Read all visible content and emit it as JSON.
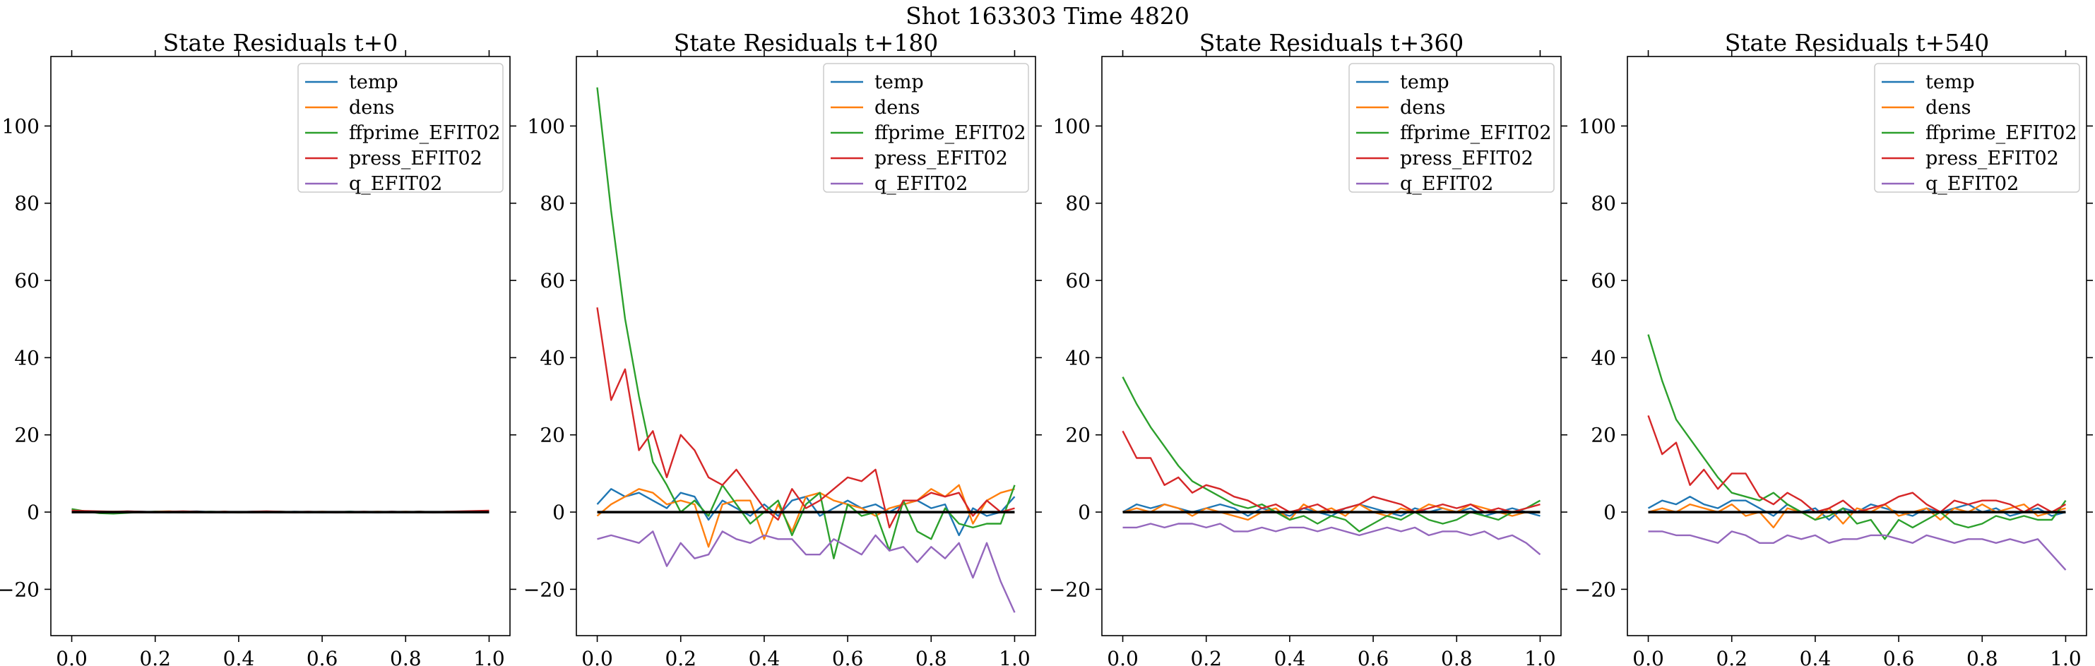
{
  "figure": {
    "title": "Shot 163303   Time 4820"
  },
  "legend_labels": [
    "temp",
    "dens",
    "ffprime_EFIT02",
    "press_EFIT02",
    "q_EFIT02"
  ],
  "colors": {
    "temp": "#1f77b4",
    "dens": "#ff7f0e",
    "ffprime_EFIT02": "#2ca02c",
    "press_EFIT02": "#d62728",
    "q_EFIT02": "#9467bd",
    "zero_line": "#000000"
  },
  "chart_data": [
    {
      "type": "line",
      "title": "State Residuals t+0",
      "xlim": [
        -0.05,
        1.05
      ],
      "ylim": [
        -32,
        118
      ],
      "xticks": [
        "0.0",
        "0.2",
        "0.4",
        "0.6",
        "0.8",
        "1.0"
      ],
      "yticks": [
        "−20",
        "0",
        "20",
        "40",
        "60",
        "80",
        "100"
      ],
      "legend_position": "upper right",
      "x": [
        0.0,
        0.0333,
        0.0667,
        0.1,
        0.1333,
        0.1667,
        0.2,
        0.2333,
        0.2667,
        0.3,
        0.3333,
        0.3667,
        0.4,
        0.4333,
        0.4667,
        0.5,
        0.5333,
        0.5667,
        0.6,
        0.6333,
        0.6667,
        0.7,
        0.7333,
        0.7667,
        0.8,
        0.8333,
        0.8667,
        0.9,
        0.9333,
        0.9667,
        1.0
      ],
      "series": [
        {
          "name": "temp",
          "values": [
            0.2,
            0.1,
            -0.1,
            0.0,
            0.2,
            0.1,
            0.0,
            -0.1,
            0.1,
            0.2,
            0.0,
            -0.1,
            0.0,
            0.1,
            0.0,
            -0.1,
            0.1,
            0.0,
            -0.1,
            0.0,
            0.1,
            0.0,
            -0.1,
            0.1,
            0.0,
            0.1,
            -0.1,
            0.0,
            0.1,
            0.0,
            0.1
          ]
        },
        {
          "name": "dens",
          "values": [
            0.3,
            0.2,
            0.0,
            0.1,
            0.0,
            -0.1,
            0.1,
            0.2,
            0.0,
            0.1,
            0.0,
            0.1,
            -0.1,
            0.0,
            0.1,
            0.0,
            -0.1,
            0.0,
            0.1,
            0.0,
            -0.1,
            0.0,
            0.1,
            0.0,
            0.1,
            0.0,
            -0.1,
            0.1,
            0.0,
            0.2,
            0.3
          ]
        },
        {
          "name": "ffprime_EFIT02",
          "values": [
            0.8,
            0.2,
            -0.3,
            -0.4,
            -0.2,
            0.0,
            0.1,
            0.0,
            -0.1,
            0.0,
            0.1,
            0.0,
            -0.1,
            0.0,
            0.0,
            0.1,
            0.0,
            -0.1,
            0.0,
            0.0,
            0.1,
            0.0,
            -0.1,
            0.0,
            0.0,
            0.1,
            0.0,
            0.0,
            -0.1,
            0.0,
            0.1
          ]
        },
        {
          "name": "press_EFIT02",
          "values": [
            0.4,
            0.3,
            0.2,
            0.1,
            0.2,
            0.1,
            0.0,
            0.1,
            0.2,
            0.1,
            0.0,
            0.1,
            0.0,
            0.1,
            0.2,
            0.1,
            0.0,
            0.1,
            0.0,
            -0.1,
            0.0,
            0.1,
            0.0,
            0.1,
            0.0,
            0.1,
            0.0,
            0.1,
            0.2,
            0.3,
            0.4
          ]
        },
        {
          "name": "q_EFIT02",
          "values": [
            -0.1,
            0.0,
            0.0,
            -0.1,
            0.0,
            0.0,
            -0.1,
            0.0,
            0.0,
            0.0,
            -0.1,
            0.0,
            0.0,
            -0.1,
            0.0,
            0.0,
            -0.1,
            0.0,
            0.0,
            -0.1,
            0.0,
            0.0,
            -0.1,
            0.0,
            0.0,
            0.0,
            -0.1,
            0.0,
            0.0,
            -0.1,
            0.0
          ]
        }
      ],
      "zero_line": 0
    },
    {
      "type": "line",
      "title": "State Residuals t+180",
      "xlim": [
        -0.05,
        1.05
      ],
      "ylim": [
        -32,
        118
      ],
      "xticks": [
        "0.0",
        "0.2",
        "0.4",
        "0.6",
        "0.8",
        "1.0"
      ],
      "yticks": [
        "−20",
        "0",
        "20",
        "40",
        "60",
        "80",
        "100"
      ],
      "legend_position": "upper right",
      "x": [
        0.0,
        0.0333,
        0.0667,
        0.1,
        0.1333,
        0.1667,
        0.2,
        0.2333,
        0.2667,
        0.3,
        0.3333,
        0.3667,
        0.4,
        0.4333,
        0.4667,
        0.5,
        0.5333,
        0.5667,
        0.6,
        0.6333,
        0.6667,
        0.7,
        0.7333,
        0.7667,
        0.8,
        0.8333,
        0.8667,
        0.9,
        0.9333,
        0.9667,
        1.0
      ],
      "series": [
        {
          "name": "temp",
          "values": [
            2,
            6,
            4,
            5,
            3,
            1,
            5,
            4,
            -2,
            3,
            1,
            -1,
            2,
            -1,
            3,
            4,
            -1,
            1,
            3,
            1,
            2,
            0,
            2,
            3,
            1,
            2,
            -6,
            1,
            -1,
            0,
            4
          ]
        },
        {
          "name": "dens",
          "values": [
            -1,
            2,
            4,
            6,
            5,
            2,
            3,
            2,
            -9,
            2,
            3,
            3,
            -7,
            2,
            -5,
            4,
            5,
            3,
            2,
            1,
            -1,
            1,
            2,
            3,
            6,
            4,
            7,
            -3,
            3,
            5,
            6
          ]
        },
        {
          "name": "ffprime_EFIT02",
          "values": [
            110,
            78,
            50,
            30,
            13,
            7,
            0,
            3,
            -1,
            7,
            2,
            -3,
            0,
            3,
            -6,
            2,
            5,
            -12,
            2,
            -1,
            0,
            -10,
            3,
            -5,
            -7,
            1,
            -3,
            -4,
            -3,
            -3,
            7
          ]
        },
        {
          "name": "press_EFIT02",
          "values": [
            53,
            29,
            37,
            16,
            21,
            9,
            20,
            16,
            9,
            7,
            11,
            6,
            1,
            -2,
            6,
            1,
            3,
            6,
            9,
            8,
            11,
            -4,
            3,
            3,
            5,
            4,
            5,
            -1,
            3,
            0,
            1
          ]
        },
        {
          "name": "q_EFIT02",
          "values": [
            -7,
            -6,
            -7,
            -8,
            -5,
            -14,
            -8,
            -12,
            -11,
            -5,
            -7,
            -8,
            -6,
            -7,
            -7,
            -11,
            -11,
            -7,
            -9,
            -11,
            -6,
            -10,
            -9,
            -13,
            -9,
            -12,
            -8,
            -17,
            -8,
            -18,
            -26
          ]
        }
      ],
      "zero_line": 0
    },
    {
      "type": "line",
      "title": "State Residuals t+360",
      "xlim": [
        -0.05,
        1.05
      ],
      "ylim": [
        -32,
        118
      ],
      "xticks": [
        "0.0",
        "0.2",
        "0.4",
        "0.6",
        "0.8",
        "1.0"
      ],
      "yticks": [
        "−20",
        "0",
        "20",
        "40",
        "60",
        "80",
        "100"
      ],
      "legend_position": "upper right",
      "x": [
        0.0,
        0.0333,
        0.0667,
        0.1,
        0.1333,
        0.1667,
        0.2,
        0.2333,
        0.2667,
        0.3,
        0.3333,
        0.3667,
        0.4,
        0.4333,
        0.4667,
        0.5,
        0.5333,
        0.5667,
        0.6,
        0.6333,
        0.6667,
        0.7,
        0.7333,
        0.7667,
        0.8,
        0.8333,
        0.8667,
        0.9,
        0.9333,
        0.9667,
        1.0
      ],
      "series": [
        {
          "name": "temp",
          "values": [
            0,
            2,
            1,
            2,
            1,
            0,
            1,
            2,
            1,
            -1,
            1,
            0,
            -1,
            1,
            0,
            -1,
            1,
            2,
            1,
            0,
            -1,
            1,
            0,
            1,
            0,
            1,
            -1,
            0,
            1,
            0,
            -1
          ]
        },
        {
          "name": "dens",
          "values": [
            0,
            1,
            0,
            2,
            1,
            -1,
            1,
            0,
            -1,
            -2,
            0,
            1,
            -2,
            2,
            0,
            1,
            -1,
            2,
            0,
            -1,
            1,
            0,
            2,
            1,
            0,
            2,
            1,
            0,
            -1,
            0,
            0
          ]
        },
        {
          "name": "ffprime_EFIT02",
          "values": [
            35,
            28,
            22,
            17,
            12,
            8,
            6,
            4,
            2,
            1,
            2,
            0,
            -2,
            -1,
            -3,
            -1,
            -2,
            -5,
            -3,
            -1,
            -2,
            0,
            -2,
            -3,
            -2,
            0,
            -1,
            -2,
            0,
            1,
            3
          ]
        },
        {
          "name": "press_EFIT02",
          "values": [
            21,
            14,
            14,
            7,
            9,
            5,
            7,
            6,
            4,
            3,
            1,
            2,
            0,
            1,
            2,
            0,
            1,
            2,
            4,
            3,
            2,
            0,
            1,
            2,
            1,
            2,
            0,
            1,
            0,
            1,
            2
          ]
        },
        {
          "name": "q_EFIT02",
          "values": [
            -4,
            -4,
            -3,
            -4,
            -3,
            -3,
            -4,
            -3,
            -5,
            -5,
            -4,
            -5,
            -4,
            -4,
            -5,
            -4,
            -5,
            -6,
            -5,
            -4,
            -5,
            -4,
            -6,
            -5,
            -5,
            -6,
            -5,
            -7,
            -6,
            -8,
            -11
          ]
        }
      ],
      "zero_line": 0
    },
    {
      "type": "line",
      "title": "State Residuals t+540",
      "xlim": [
        -0.05,
        1.05
      ],
      "ylim": [
        -32,
        118
      ],
      "xticks": [
        "0.0",
        "0.2",
        "0.4",
        "0.6",
        "0.8",
        "1.0"
      ],
      "yticks": [
        "−20",
        "0",
        "20",
        "40",
        "60",
        "80",
        "100"
      ],
      "legend_position": "upper right",
      "x": [
        0.0,
        0.0333,
        0.0667,
        0.1,
        0.1333,
        0.1667,
        0.2,
        0.2333,
        0.2667,
        0.3,
        0.3333,
        0.3667,
        0.4,
        0.4333,
        0.4667,
        0.5,
        0.5333,
        0.5667,
        0.6,
        0.6333,
        0.6667,
        0.7,
        0.7333,
        0.7667,
        0.8,
        0.8333,
        0.8667,
        0.9,
        0.9333,
        0.9667,
        1.0
      ],
      "series": [
        {
          "name": "temp",
          "values": [
            1,
            3,
            2,
            4,
            2,
            1,
            3,
            3,
            1,
            -1,
            2,
            0,
            1,
            -2,
            1,
            0,
            2,
            1,
            0,
            -1,
            1,
            0,
            1,
            2,
            0,
            1,
            -1,
            0,
            1,
            -1,
            0
          ]
        },
        {
          "name": "dens",
          "values": [
            0,
            1,
            0,
            2,
            1,
            0,
            2,
            -1,
            0,
            -4,
            1,
            0,
            -2,
            1,
            -3,
            1,
            0,
            2,
            -1,
            0,
            1,
            -2,
            1,
            0,
            2,
            0,
            1,
            2,
            -1,
            0,
            1
          ]
        },
        {
          "name": "ffprime_EFIT02",
          "values": [
            46,
            34,
            24,
            19,
            14,
            9,
            5,
            4,
            3,
            5,
            2,
            0,
            -2,
            -1,
            1,
            -3,
            -2,
            -7,
            -2,
            -4,
            -2,
            0,
            -3,
            -4,
            -3,
            -1,
            -2,
            -1,
            -2,
            -2,
            3
          ]
        },
        {
          "name": "press_EFIT02",
          "values": [
            25,
            15,
            18,
            7,
            11,
            6,
            10,
            10,
            4,
            2,
            5,
            3,
            0,
            1,
            3,
            0,
            1,
            2,
            4,
            5,
            2,
            0,
            3,
            2,
            3,
            3,
            2,
            0,
            2,
            0,
            2
          ]
        },
        {
          "name": "q_EFIT02",
          "values": [
            -5,
            -5,
            -6,
            -6,
            -7,
            -8,
            -5,
            -6,
            -8,
            -8,
            -6,
            -7,
            -6,
            -8,
            -7,
            -7,
            -6,
            -6,
            -7,
            -8,
            -6,
            -7,
            -8,
            -7,
            -7,
            -8,
            -7,
            -8,
            -7,
            -11,
            -15
          ]
        }
      ],
      "zero_line": 0
    }
  ]
}
